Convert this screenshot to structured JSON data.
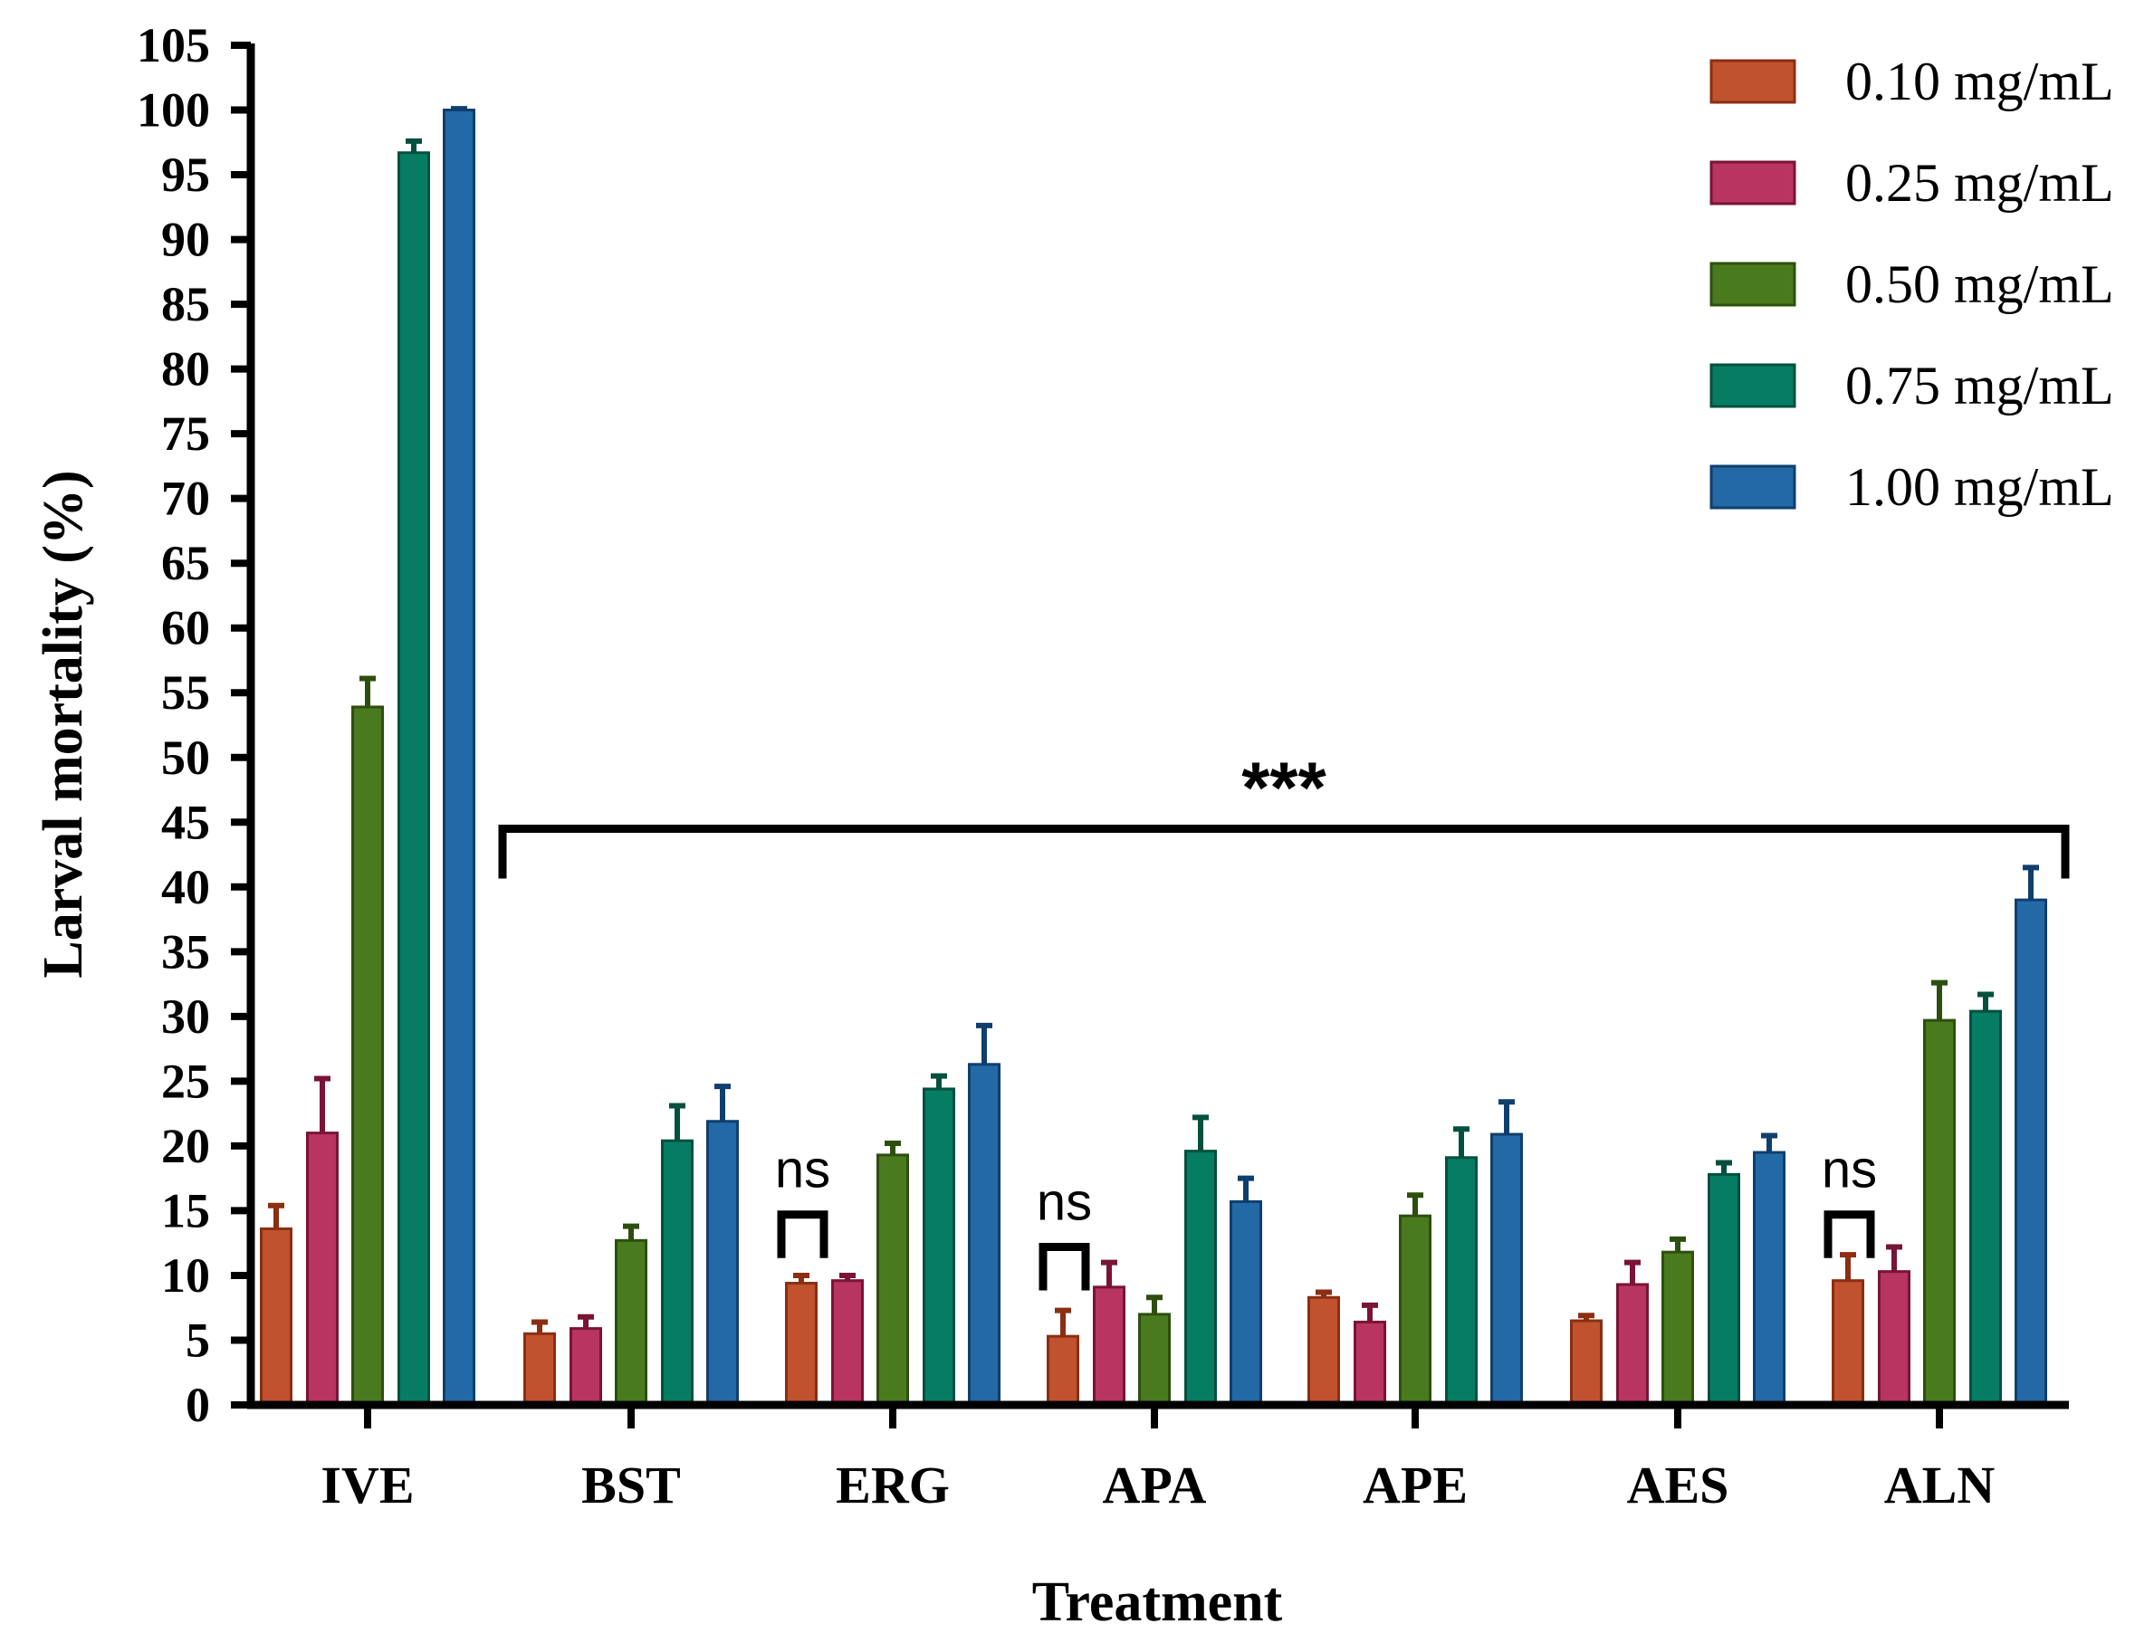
{
  "chart_data": {
    "type": "bar",
    "title": "",
    "xlabel": "Treatment",
    "ylabel": "Larval mortality (%)",
    "ylim": [
      0,
      105
    ],
    "ytick_step": 5,
    "yticks": [
      "0",
      "5",
      "10",
      "15",
      "20",
      "25",
      "30",
      "35",
      "40",
      "45",
      "50",
      "55",
      "60",
      "65",
      "70",
      "75",
      "80",
      "85",
      "90",
      "95",
      "100",
      "105"
    ],
    "categories": [
      "IVE",
      "BST",
      "ERG",
      "APA",
      "APE",
      "AES",
      "ALN"
    ],
    "series": [
      {
        "name": "0.10 mg/mL",
        "color": "#C0522F",
        "edge": "#8B2E12",
        "values": [
          13.6,
          5.5,
          9.4,
          5.3,
          8.3,
          6.5,
          9.6
        ],
        "errors": [
          1.8,
          0.9,
          0.6,
          2.0,
          0.4,
          0.4,
          2.0
        ]
      },
      {
        "name": "0.25 mg/mL",
        "color": "#B83561",
        "edge": "#7A1434",
        "values": [
          21.0,
          5.9,
          9.6,
          9.1,
          6.4,
          9.3,
          10.3
        ],
        "errors": [
          4.2,
          0.9,
          0.4,
          1.9,
          1.3,
          1.7,
          1.9
        ]
      },
      {
        "name": "0.50 mg/mL",
        "color": "#4A7A1E",
        "edge": "#2D4F0E",
        "values": [
          53.9,
          12.7,
          19.3,
          7.0,
          14.6,
          11.8,
          29.7
        ],
        "errors": [
          2.2,
          1.1,
          0.9,
          1.3,
          1.6,
          1.0,
          2.9
        ]
      },
      {
        "name": "0.75 mg/mL",
        "color": "#067D63",
        "edge": "#04503E",
        "values": [
          96.7,
          20.4,
          24.4,
          19.6,
          19.1,
          17.8,
          30.4
        ],
        "errors": [
          0.9,
          2.7,
          1.0,
          2.6,
          2.2,
          0.9,
          1.3
        ]
      },
      {
        "name": "1.00 mg/mL",
        "color": "#2369A6",
        "edge": "#0F3F6E",
        "values": [
          100.0,
          21.9,
          26.3,
          15.7,
          20.9,
          19.5,
          39.0
        ],
        "errors": [
          0.1,
          2.7,
          3.0,
          1.8,
          2.5,
          1.3,
          2.5
        ]
      }
    ],
    "annotations": [
      {
        "type": "bracket",
        "label": "***",
        "from_category": "BST",
        "to_category": "ALN",
        "y": 44.5
      },
      {
        "type": "ns",
        "label": "ns",
        "category": "ERG",
        "series_pair": [
          0,
          1
        ],
        "y": 14.7
      },
      {
        "type": "ns",
        "label": "ns",
        "category": "APA",
        "series_pair": [
          0,
          1
        ],
        "y": 12.2
      },
      {
        "type": "ns",
        "label": "ns",
        "category": "ALN",
        "series_pair": [
          0,
          1
        ],
        "y": 14.7
      }
    ],
    "legend": "top-right"
  }
}
